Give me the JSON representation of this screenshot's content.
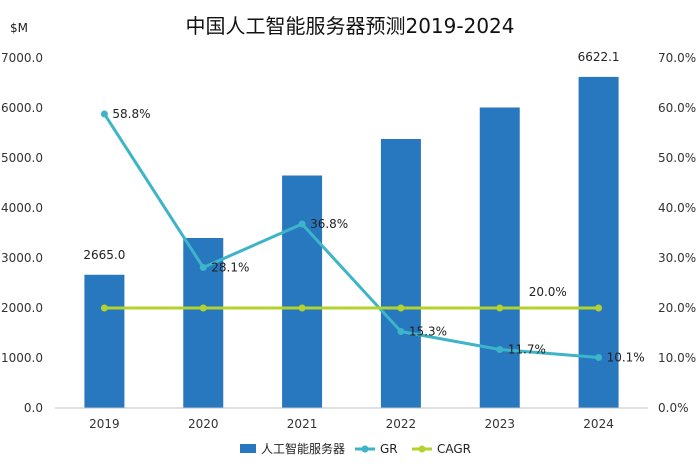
{
  "chart_data": {
    "type": "bar",
    "title": "中国人工智能服务器预测2019-2024",
    "y_unit_label": "$M",
    "categories": [
      "2019",
      "2020",
      "2021",
      "2022",
      "2023",
      "2024"
    ],
    "ylim": [
      0,
      7000
    ],
    "yticks": [
      "0.0",
      "1000.0",
      "2000.0",
      "3000.0",
      "4000.0",
      "5000.0",
      "6000.0",
      "7000.0"
    ],
    "y2lim": [
      0,
      70
    ],
    "y2ticks": [
      "0.0%",
      "10.0%",
      "20.0%",
      "30.0%",
      "40.0%",
      "50.0%",
      "60.0%",
      "70.0%"
    ],
    "grid": false,
    "legend_position": "bottom",
    "colors": {
      "bar": "#2878c0",
      "gr": "#3db4c8",
      "cagr": "#b4d22d"
    },
    "series": [
      {
        "name": "人工智能服务器",
        "type": "bar",
        "axis": "left",
        "values": [
          2665.0,
          3400.0,
          4650.0,
          5380.0,
          6010.0,
          6622.1
        ],
        "labels": [
          "2665.0",
          "",
          "",
          "",
          "",
          "6622.1"
        ]
      },
      {
        "name": "GR",
        "type": "line",
        "axis": "right",
        "values": [
          58.8,
          28.1,
          36.8,
          15.3,
          11.7,
          10.1
        ],
        "labels": [
          "58.8%",
          "28.1%",
          "36.8%",
          "15.3%",
          "11.7%",
          "10.1%"
        ]
      },
      {
        "name": "CAGR",
        "type": "line",
        "axis": "right",
        "values": [
          20.0,
          20.0,
          20.0,
          20.0,
          20.0,
          20.0
        ],
        "labels": [
          "",
          "",
          "",
          "",
          "20.0%",
          ""
        ]
      }
    ]
  }
}
